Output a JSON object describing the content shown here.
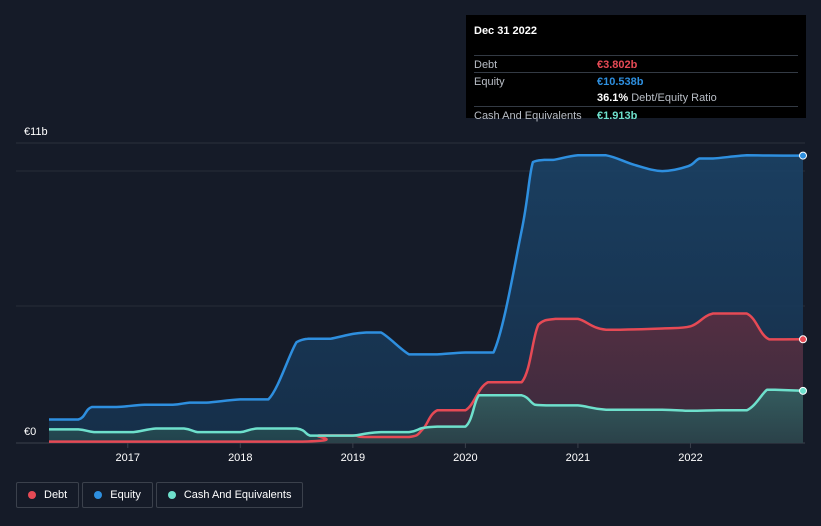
{
  "chart_data": {
    "type": "area",
    "title": "",
    "xlabel": "",
    "ylabel": "",
    "y_axis_labels": {
      "top": "€11b",
      "bottom": "€0"
    },
    "ylim": [
      0,
      11
    ],
    "xlim": [
      2016.3,
      2023.0
    ],
    "x_ticks": [
      "2017",
      "2018",
      "2019",
      "2020",
      "2021",
      "2022"
    ],
    "series": [
      {
        "name": "Equity",
        "color": "#2e8fdf",
        "x": [
          2016.3,
          2016.56,
          2016.68,
          2016.9,
          2017.15,
          2017.4,
          2017.55,
          2017.7,
          2018.0,
          2018.25,
          2018.5,
          2018.6,
          2018.7,
          2018.8,
          2019.0,
          2019.12,
          2019.25,
          2019.5,
          2019.62,
          2019.75,
          2020.0,
          2020.25,
          2020.5,
          2020.6,
          2020.7,
          2020.78,
          2021.0,
          2021.25,
          2021.5,
          2021.75,
          2021.98,
          2022.08,
          2022.2,
          2022.5,
          2022.7,
          2023.0
        ],
        "values": [
          0.86,
          0.86,
          1.32,
          1.32,
          1.4,
          1.4,
          1.48,
          1.48,
          1.6,
          1.6,
          3.7,
          3.82,
          3.82,
          3.82,
          4.0,
          4.05,
          4.05,
          3.25,
          3.25,
          3.25,
          3.32,
          3.32,
          7.8,
          10.3,
          10.38,
          10.38,
          10.55,
          10.55,
          10.2,
          9.97,
          10.15,
          10.43,
          10.43,
          10.55,
          10.54,
          10.538
        ]
      },
      {
        "name": "Debt",
        "color": "#e64a55",
        "x": [
          2016.3,
          2018.55,
          2018.7,
          2019.0,
          2019.1,
          2019.5,
          2019.62,
          2019.75,
          2020.0,
          2020.2,
          2020.5,
          2020.65,
          2020.8,
          2021.0,
          2021.25,
          2021.75,
          2022.0,
          2022.2,
          2022.5,
          2022.7,
          2023.0
        ],
        "values": [
          0.05,
          0.05,
          0.28,
          0.28,
          0.22,
          0.22,
          0.5,
          1.2,
          1.2,
          2.23,
          2.23,
          4.35,
          4.55,
          4.55,
          4.15,
          4.2,
          4.28,
          4.75,
          4.75,
          3.8,
          3.802
        ]
      },
      {
        "name": "Cash And Equivalents",
        "color": "#6ee0cc",
        "x": [
          2016.3,
          2016.56,
          2016.7,
          2016.9,
          2017.05,
          2017.25,
          2017.5,
          2017.62,
          2017.75,
          2018.0,
          2018.15,
          2018.5,
          2018.62,
          2018.75,
          2019.0,
          2019.12,
          2019.25,
          2019.5,
          2019.62,
          2019.75,
          2020.0,
          2020.12,
          2020.25,
          2020.5,
          2020.62,
          2020.75,
          2021.0,
          2021.25,
          2021.75,
          2022.0,
          2022.25,
          2022.5,
          2022.68,
          2022.75,
          2023.0
        ],
        "values": [
          0.5,
          0.5,
          0.4,
          0.4,
          0.4,
          0.53,
          0.53,
          0.4,
          0.4,
          0.4,
          0.53,
          0.53,
          0.27,
          0.27,
          0.27,
          0.35,
          0.4,
          0.4,
          0.55,
          0.6,
          0.6,
          1.75,
          1.75,
          1.75,
          1.4,
          1.38,
          1.38,
          1.22,
          1.22,
          1.18,
          1.2,
          1.2,
          1.95,
          1.95,
          1.913
        ]
      }
    ],
    "legend": [
      "Debt",
      "Equity",
      "Cash And Equivalents"
    ]
  },
  "tooltip": {
    "date": "Dec 31 2022",
    "rows": [
      {
        "label": "Debt",
        "value": "€3.802b",
        "color": "#e64a55"
      },
      {
        "label": "Equity",
        "value": "€10.538b",
        "color": "#2e8fdf"
      },
      {
        "label": "",
        "value": "36.1%",
        "suffix": "Debt/Equity Ratio",
        "color": "#ffffff"
      },
      {
        "label": "Cash And Equivalents",
        "value": "€1.913b",
        "color": "#6ee0cc"
      }
    ]
  },
  "legend": {
    "items": [
      {
        "label": "Debt",
        "color": "#e64a55"
      },
      {
        "label": "Equity",
        "color": "#2e8fdf"
      },
      {
        "label": "Cash And Equivalents",
        "color": "#6ee0cc"
      }
    ]
  }
}
